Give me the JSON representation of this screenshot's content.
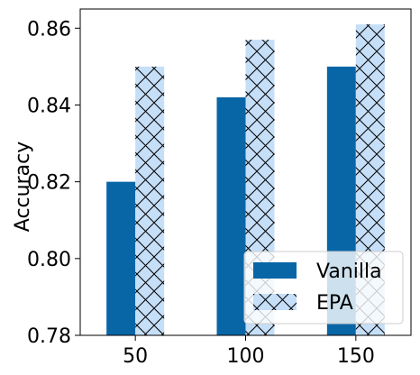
{
  "chart_data": {
    "type": "bar",
    "categories": [
      "50",
      "100",
      "150"
    ],
    "xlabel": "",
    "ylabel": "Accuracy",
    "ylim": [
      0.78,
      0.865
    ],
    "yticks": [
      0.78,
      0.8,
      0.82,
      0.84,
      0.86
    ],
    "ytick_labels": [
      "0.78",
      "0.80",
      "0.82",
      "0.84",
      "0.86"
    ],
    "series": [
      {
        "name": "Vanilla",
        "values": [
          0.82,
          0.842,
          0.85
        ],
        "color": "#0866a6",
        "pattern": "solid"
      },
      {
        "name": "EPA",
        "values": [
          0.85,
          0.857,
          0.861
        ],
        "color": "#c6dff8",
        "pattern": "crosshatch"
      }
    ],
    "legend_position": "lower-right",
    "grid": false
  }
}
